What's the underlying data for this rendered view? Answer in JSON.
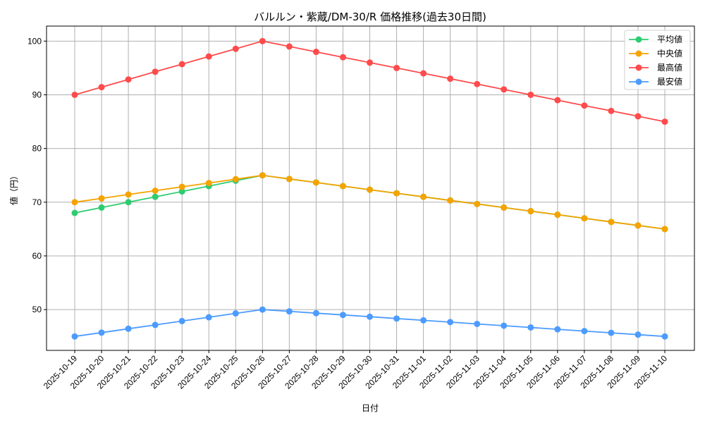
{
  "chart_data": {
    "type": "line",
    "title": "バルルン・紫蔵/DM-30/R 価格推移(過去30日間)",
    "xlabel": "日付",
    "ylabel": "値（円）",
    "ylim": [
      42.4,
      102.8
    ],
    "yticks": [
      50,
      60,
      70,
      80,
      90,
      100
    ],
    "grid": true,
    "legend_position": "upper right",
    "categories": [
      "2025-10-19",
      "2025-10-20",
      "2025-10-21",
      "2025-10-22",
      "2025-10-23",
      "2025-10-24",
      "2025-10-25",
      "2025-10-26",
      "2025-10-27",
      "2025-10-28",
      "2025-10-29",
      "2025-10-30",
      "2025-10-31",
      "2025-11-01",
      "2025-11-02",
      "2025-11-03",
      "2025-11-04",
      "2025-11-05",
      "2025-11-06",
      "2025-11-07",
      "2025-11-08",
      "2025-11-09",
      "2025-11-10"
    ],
    "series": [
      {
        "name": "平均値",
        "color": "#2ecc71",
        "values": [
          68,
          69,
          70,
          71,
          72,
          73,
          74,
          75,
          74.33,
          73.67,
          73,
          72.33,
          71.67,
          71,
          70.33,
          69.67,
          69,
          68.33,
          67.67,
          67,
          66.33,
          65.67,
          65
        ]
      },
      {
        "name": "中央値",
        "color": "#f5a300",
        "values": [
          70,
          70.71,
          71.43,
          72.14,
          72.86,
          73.57,
          74.29,
          75,
          74.33,
          73.67,
          73,
          72.33,
          71.67,
          71,
          70.33,
          69.67,
          69,
          68.33,
          67.67,
          67,
          66.33,
          65.67,
          65
        ]
      },
      {
        "name": "最高値",
        "color": "#ff4b4b",
        "values": [
          90,
          91.43,
          92.86,
          94.29,
          95.71,
          97.14,
          98.57,
          100,
          99,
          98,
          97,
          96,
          95,
          94,
          93,
          92,
          91,
          90,
          89,
          88,
          87,
          86,
          85
        ]
      },
      {
        "name": "最安値",
        "color": "#4c9bff",
        "values": [
          45,
          45.71,
          46.43,
          47.14,
          47.86,
          48.57,
          49.29,
          50,
          49.67,
          49.33,
          49,
          48.67,
          48.33,
          48,
          47.67,
          47.33,
          47,
          46.67,
          46.33,
          46,
          45.67,
          45.33,
          45
        ]
      }
    ]
  }
}
